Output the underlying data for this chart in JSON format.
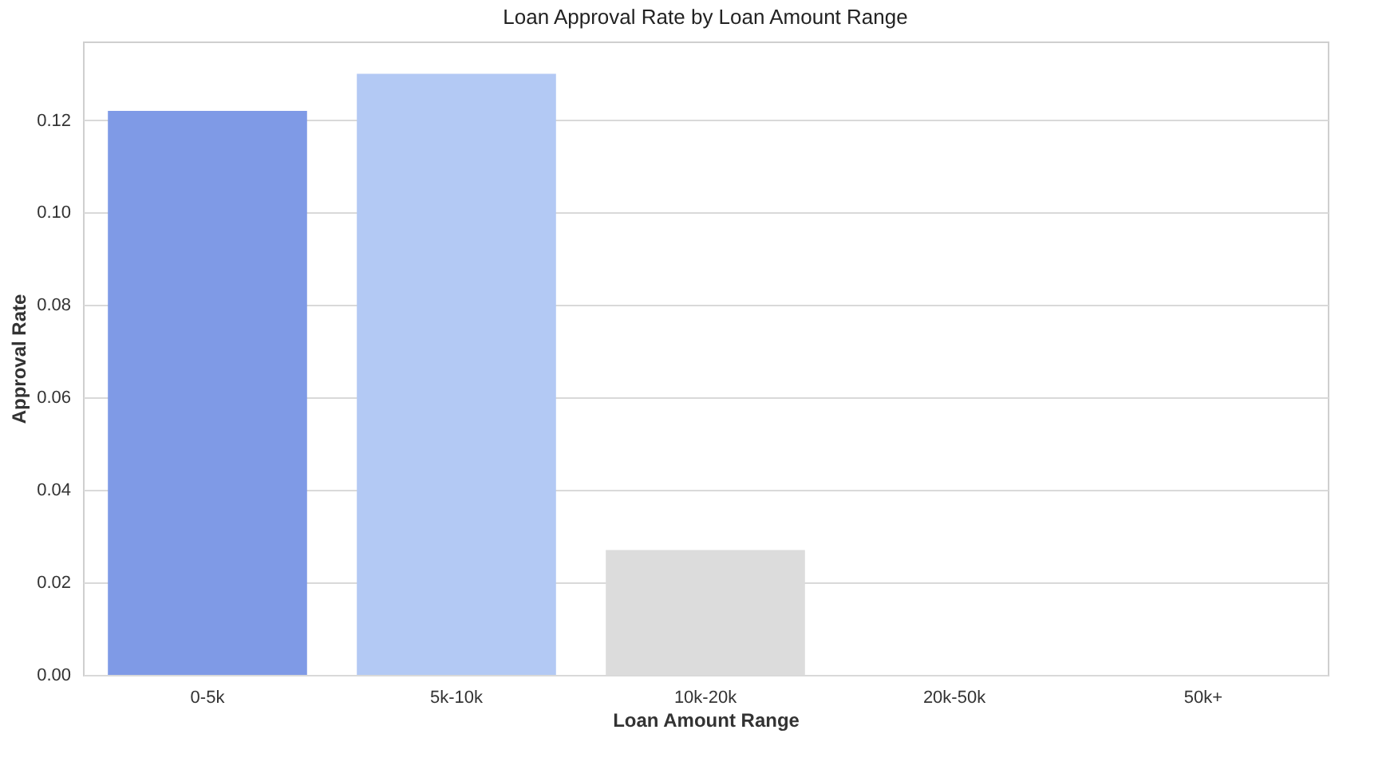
{
  "chart_data": {
    "type": "bar",
    "title": "Loan Approval Rate by Loan Amount Range",
    "xlabel": "Loan Amount Range",
    "ylabel": "Approval Rate",
    "categories": [
      "0-5k",
      "5k-10k",
      "10k-20k",
      "20k-50k",
      "50k+"
    ],
    "values": [
      0.122,
      0.13,
      0.027,
      0,
      0
    ],
    "colors": [
      "#7f9ae6",
      "#b3c9f4",
      "#dcdcdc",
      "#f2b49b",
      "#dd7c68"
    ],
    "ylim": [
      0,
      0.137
    ],
    "yticks": [
      {
        "value": 0,
        "label": "0.00"
      },
      {
        "value": 0.02,
        "label": "0.02"
      },
      {
        "value": 0.04,
        "label": "0.04"
      },
      {
        "value": 0.06,
        "label": "0.06"
      },
      {
        "value": 0.08,
        "label": "0.08"
      },
      {
        "value": 0.1,
        "label": "0.10"
      },
      {
        "value": 0.12,
        "label": "0.12"
      }
    ],
    "grid": "y"
  }
}
